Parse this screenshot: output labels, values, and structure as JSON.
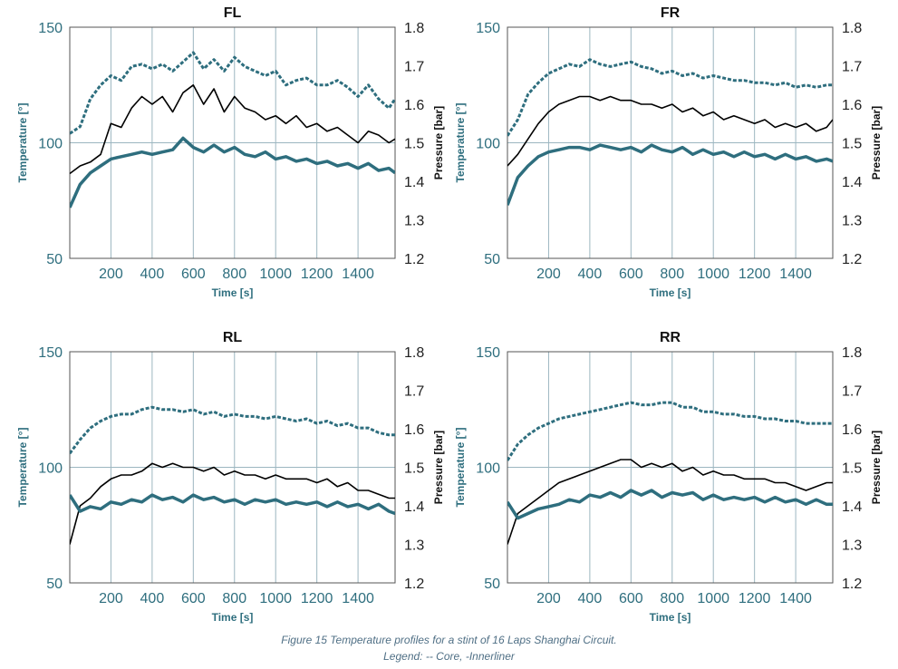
{
  "caption": {
    "line1": "Figure 15 Temperature profiles for a stint of 16 Laps Shanghai Circuit.",
    "line2": "Legend:  -- Core, -Innerliner"
  },
  "colors": {
    "temperature": "#2e6e7e",
    "pressure": "#000000",
    "grid": "#9cb6c0"
  },
  "chart_data": [
    {
      "type": "line",
      "title": "FL",
      "xlabel": "Time [s]",
      "ylabel": "Temperature [°]",
      "y2label": "Pressure [bar]",
      "xlim": [
        0,
        1580
      ],
      "ylim": [
        50,
        150
      ],
      "y2lim": [
        1.2,
        1.8
      ],
      "xticks": [
        200,
        400,
        600,
        800,
        1000,
        1200,
        1400
      ],
      "yticks": [
        50,
        100,
        150
      ],
      "y2ticks": [
        1.2,
        1.3,
        1.4,
        1.5,
        1.6,
        1.7,
        1.8
      ],
      "grid": true,
      "series": [
        {
          "role": "core",
          "axis": "left",
          "style": "dashed",
          "x": [
            0,
            50,
            100,
            150,
            200,
            250,
            300,
            350,
            400,
            450,
            500,
            550,
            600,
            650,
            700,
            750,
            800,
            850,
            900,
            950,
            1000,
            1050,
            1100,
            1150,
            1200,
            1250,
            1300,
            1350,
            1400,
            1450,
            1500,
            1550,
            1580
          ],
          "y": [
            104,
            107,
            119,
            125,
            129,
            127,
            133,
            134,
            132,
            134,
            131,
            135,
            139,
            132,
            136,
            131,
            137,
            133,
            131,
            129,
            131,
            125,
            127,
            128,
            125,
            125,
            127,
            124,
            120,
            125,
            119,
            115,
            119
          ]
        },
        {
          "role": "innerliner",
          "axis": "right",
          "style": "solid",
          "x": [
            0,
            50,
            100,
            150,
            200,
            250,
            300,
            350,
            400,
            450,
            500,
            550,
            600,
            650,
            700,
            750,
            800,
            850,
            900,
            950,
            1000,
            1050,
            1100,
            1150,
            1200,
            1250,
            1300,
            1350,
            1400,
            1450,
            1500,
            1550,
            1580
          ],
          "y": [
            1.42,
            1.44,
            1.45,
            1.47,
            1.55,
            1.54,
            1.59,
            1.62,
            1.6,
            1.62,
            1.58,
            1.63,
            1.65,
            1.6,
            1.64,
            1.58,
            1.62,
            1.59,
            1.58,
            1.56,
            1.57,
            1.55,
            1.57,
            1.54,
            1.55,
            1.53,
            1.54,
            1.52,
            1.5,
            1.53,
            1.52,
            1.5,
            1.51
          ]
        },
        {
          "role": "innerliner-temperature",
          "axis": "left",
          "style": "solid-thick",
          "x": [
            0,
            50,
            100,
            150,
            200,
            250,
            300,
            350,
            400,
            450,
            500,
            550,
            600,
            650,
            700,
            750,
            800,
            850,
            900,
            950,
            1000,
            1050,
            1100,
            1150,
            1200,
            1250,
            1300,
            1350,
            1400,
            1450,
            1500,
            1550,
            1580
          ],
          "y": [
            72,
            82,
            87,
            90,
            93,
            94,
            95,
            96,
            95,
            96,
            97,
            102,
            98,
            96,
            99,
            96,
            98,
            95,
            94,
            96,
            93,
            94,
            92,
            93,
            91,
            92,
            90,
            91,
            89,
            91,
            88,
            89,
            87
          ]
        }
      ]
    },
    {
      "type": "line",
      "title": "FR",
      "xlabel": "Time [s]",
      "ylabel": "Temperature [°]",
      "y2label": "Pressure [bar]",
      "xlim": [
        0,
        1580
      ],
      "ylim": [
        50,
        150
      ],
      "y2lim": [
        1.2,
        1.8
      ],
      "xticks": [
        200,
        400,
        600,
        800,
        1000,
        1200,
        1400
      ],
      "yticks": [
        50,
        100,
        150
      ],
      "y2ticks": [
        1.2,
        1.3,
        1.4,
        1.5,
        1.6,
        1.7,
        1.8
      ],
      "grid": true,
      "series": [
        {
          "role": "core",
          "axis": "left",
          "style": "dashed",
          "x": [
            0,
            50,
            100,
            150,
            200,
            250,
            300,
            350,
            400,
            450,
            500,
            550,
            600,
            650,
            700,
            750,
            800,
            850,
            900,
            950,
            1000,
            1050,
            1100,
            1150,
            1200,
            1250,
            1300,
            1350,
            1400,
            1450,
            1500,
            1550,
            1580
          ],
          "y": [
            103,
            110,
            121,
            126,
            130,
            132,
            134,
            133,
            136,
            134,
            133,
            134,
            135,
            133,
            132,
            130,
            131,
            129,
            130,
            128,
            129,
            128,
            127,
            127,
            126,
            126,
            125,
            126,
            124,
            125,
            124,
            125,
            125
          ]
        },
        {
          "role": "innerliner",
          "axis": "right",
          "style": "solid",
          "x": [
            0,
            50,
            100,
            150,
            200,
            250,
            300,
            350,
            400,
            450,
            500,
            550,
            600,
            650,
            700,
            750,
            800,
            850,
            900,
            950,
            1000,
            1050,
            1100,
            1150,
            1200,
            1250,
            1300,
            1350,
            1400,
            1450,
            1500,
            1550,
            1580
          ],
          "y": [
            1.44,
            1.47,
            1.51,
            1.55,
            1.58,
            1.6,
            1.61,
            1.62,
            1.62,
            1.61,
            1.62,
            1.61,
            1.61,
            1.6,
            1.6,
            1.59,
            1.6,
            1.58,
            1.59,
            1.57,
            1.58,
            1.56,
            1.57,
            1.56,
            1.55,
            1.56,
            1.54,
            1.55,
            1.54,
            1.55,
            1.53,
            1.54,
            1.56
          ]
        },
        {
          "role": "innerliner-temperature",
          "axis": "left",
          "style": "solid-thick",
          "x": [
            0,
            50,
            100,
            150,
            200,
            250,
            300,
            350,
            400,
            450,
            500,
            550,
            600,
            650,
            700,
            750,
            800,
            850,
            900,
            950,
            1000,
            1050,
            1100,
            1150,
            1200,
            1250,
            1300,
            1350,
            1400,
            1450,
            1500,
            1550,
            1580
          ],
          "y": [
            73,
            85,
            90,
            94,
            96,
            97,
            98,
            98,
            97,
            99,
            98,
            97,
            98,
            96,
            99,
            97,
            96,
            98,
            95,
            97,
            95,
            96,
            94,
            96,
            94,
            95,
            93,
            95,
            93,
            94,
            92,
            93,
            92
          ]
        }
      ]
    },
    {
      "type": "line",
      "title": "RL",
      "xlabel": "Time [s]",
      "ylabel": "Temperature [°]",
      "y2label": "Pressure [bar]",
      "xlim": [
        0,
        1580
      ],
      "ylim": [
        50,
        150
      ],
      "y2lim": [
        1.2,
        1.8
      ],
      "xticks": [
        200,
        400,
        600,
        800,
        1000,
        1200,
        1400
      ],
      "yticks": [
        50,
        100,
        150
      ],
      "y2ticks": [
        1.2,
        1.3,
        1.4,
        1.5,
        1.6,
        1.7,
        1.8
      ],
      "grid": true,
      "series": [
        {
          "role": "core",
          "axis": "left",
          "style": "dashed",
          "x": [
            0,
            50,
            100,
            150,
            200,
            250,
            300,
            350,
            400,
            450,
            500,
            550,
            600,
            650,
            700,
            750,
            800,
            850,
            900,
            950,
            1000,
            1050,
            1100,
            1150,
            1200,
            1250,
            1300,
            1350,
            1400,
            1450,
            1500,
            1550,
            1580
          ],
          "y": [
            106,
            112,
            117,
            120,
            122,
            123,
            123,
            125,
            126,
            125,
            125,
            124,
            125,
            123,
            124,
            122,
            123,
            122,
            122,
            121,
            122,
            121,
            120,
            121,
            119,
            120,
            118,
            119,
            117,
            117,
            115,
            114,
            114
          ]
        },
        {
          "role": "innerliner",
          "axis": "right",
          "style": "solid",
          "x": [
            0,
            50,
            100,
            150,
            200,
            250,
            300,
            350,
            400,
            450,
            500,
            550,
            600,
            650,
            700,
            750,
            800,
            850,
            900,
            950,
            1000,
            1050,
            1100,
            1150,
            1200,
            1250,
            1300,
            1350,
            1400,
            1450,
            1500,
            1550,
            1580
          ],
          "y": [
            1.3,
            1.4,
            1.42,
            1.45,
            1.47,
            1.48,
            1.48,
            1.49,
            1.51,
            1.5,
            1.51,
            1.5,
            1.5,
            1.49,
            1.5,
            1.48,
            1.49,
            1.48,
            1.48,
            1.47,
            1.48,
            1.47,
            1.47,
            1.47,
            1.46,
            1.47,
            1.45,
            1.46,
            1.44,
            1.44,
            1.43,
            1.42,
            1.42
          ]
        },
        {
          "role": "innerliner-temperature",
          "axis": "left",
          "style": "solid-thick",
          "x": [
            0,
            50,
            100,
            150,
            200,
            250,
            300,
            350,
            400,
            450,
            500,
            550,
            600,
            650,
            700,
            750,
            800,
            850,
            900,
            950,
            1000,
            1050,
            1100,
            1150,
            1200,
            1250,
            1300,
            1350,
            1400,
            1450,
            1500,
            1550,
            1580
          ],
          "y": [
            88,
            81,
            83,
            82,
            85,
            84,
            86,
            85,
            88,
            86,
            87,
            85,
            88,
            86,
            87,
            85,
            86,
            84,
            86,
            85,
            86,
            84,
            85,
            84,
            85,
            83,
            85,
            83,
            84,
            82,
            84,
            81,
            80
          ]
        }
      ]
    },
    {
      "type": "line",
      "title": "RR",
      "xlabel": "Time [s]",
      "ylabel": "Temperature [°]",
      "y2label": "Pressure [bar]",
      "xlim": [
        0,
        1580
      ],
      "ylim": [
        50,
        150
      ],
      "y2lim": [
        1.2,
        1.8
      ],
      "xticks": [
        200,
        400,
        600,
        800,
        1000,
        1200,
        1400
      ],
      "yticks": [
        50,
        100,
        150
      ],
      "y2ticks": [
        1.2,
        1.3,
        1.4,
        1.5,
        1.6,
        1.7,
        1.8
      ],
      "grid": true,
      "series": [
        {
          "role": "core",
          "axis": "left",
          "style": "dashed",
          "x": [
            0,
            50,
            100,
            150,
            200,
            250,
            300,
            350,
            400,
            450,
            500,
            550,
            600,
            650,
            700,
            750,
            800,
            850,
            900,
            950,
            1000,
            1050,
            1100,
            1150,
            1200,
            1250,
            1300,
            1350,
            1400,
            1450,
            1500,
            1550,
            1580
          ],
          "y": [
            103,
            110,
            114,
            117,
            119,
            121,
            122,
            123,
            124,
            125,
            126,
            127,
            128,
            127,
            127,
            128,
            128,
            126,
            126,
            124,
            124,
            123,
            123,
            122,
            122,
            121,
            121,
            120,
            120,
            119,
            119,
            119,
            119
          ]
        },
        {
          "role": "innerliner",
          "axis": "right",
          "style": "solid",
          "x": [
            0,
            50,
            100,
            150,
            200,
            250,
            300,
            350,
            400,
            450,
            500,
            550,
            600,
            650,
            700,
            750,
            800,
            850,
            900,
            950,
            1000,
            1050,
            1100,
            1150,
            1200,
            1250,
            1300,
            1350,
            1400,
            1450,
            1500,
            1550,
            1580
          ],
          "y": [
            1.3,
            1.38,
            1.4,
            1.42,
            1.44,
            1.46,
            1.47,
            1.48,
            1.49,
            1.5,
            1.51,
            1.52,
            1.52,
            1.5,
            1.51,
            1.5,
            1.51,
            1.49,
            1.5,
            1.48,
            1.49,
            1.48,
            1.48,
            1.47,
            1.47,
            1.47,
            1.46,
            1.46,
            1.45,
            1.44,
            1.45,
            1.46,
            1.46
          ]
        },
        {
          "role": "innerliner-temperature",
          "axis": "left",
          "style": "solid-thick",
          "x": [
            0,
            50,
            100,
            150,
            200,
            250,
            300,
            350,
            400,
            450,
            500,
            550,
            600,
            650,
            700,
            750,
            800,
            850,
            900,
            950,
            1000,
            1050,
            1100,
            1150,
            1200,
            1250,
            1300,
            1350,
            1400,
            1450,
            1500,
            1550,
            1580
          ],
          "y": [
            85,
            78,
            80,
            82,
            83,
            84,
            86,
            85,
            88,
            87,
            89,
            87,
            90,
            88,
            90,
            87,
            89,
            88,
            89,
            86,
            88,
            86,
            87,
            86,
            87,
            85,
            87,
            85,
            86,
            84,
            86,
            84,
            84
          ]
        }
      ]
    }
  ]
}
